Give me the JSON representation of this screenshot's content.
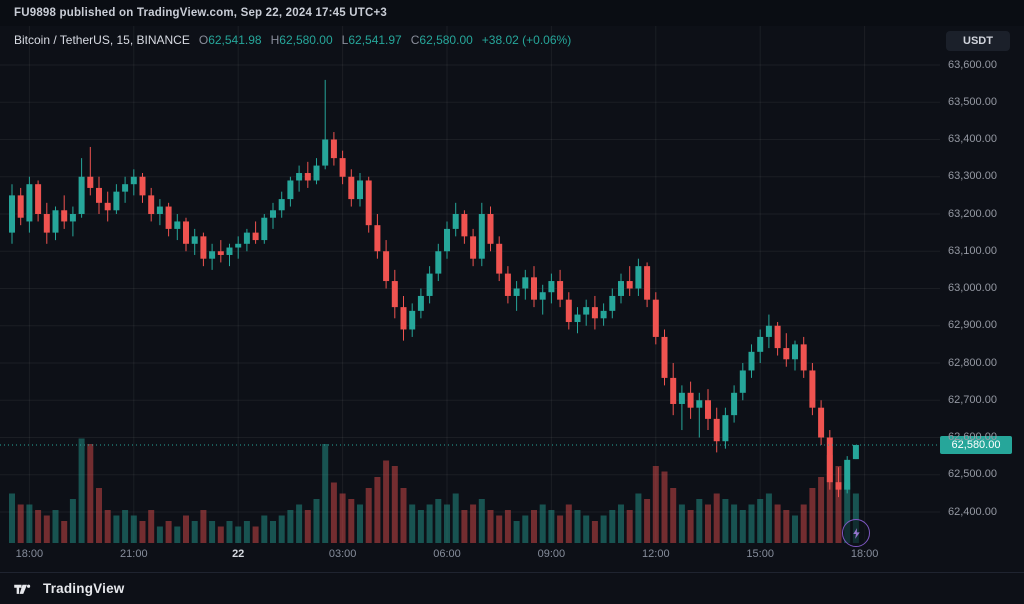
{
  "header": {
    "published_line": "FU9898 published on TradingView.com, Sep 22, 2024 17:45 UTC+3"
  },
  "symbol_bar": {
    "title": "Bitcoin / TetherUS, 15, BINANCE",
    "ohlc": [
      {
        "label": "O",
        "value": "62,541.98"
      },
      {
        "label": "H",
        "value": "62,580.00"
      },
      {
        "label": "L",
        "value": "62,541.97"
      },
      {
        "label": "C",
        "value": "62,580.00"
      }
    ],
    "change": "+38.02 (+0.06%)"
  },
  "currency_button": {
    "label": "USDT"
  },
  "price_scale": {
    "last_price_label": "62,580.00"
  },
  "footer": {
    "brand": "TradingView"
  },
  "colors": {
    "up": "#26a69a",
    "down": "#ef5350",
    "volume_up": "rgba(38,166,154,0.45)",
    "volume_down": "rgba(239,83,80,0.45)",
    "grid": "rgba(255,255,255,0.06)",
    "axis_text": "#868d9b",
    "axis_text_emphasis": "#d6d9df",
    "accent_purple": "#7e57c2",
    "last_price_tag_bg": "#26a69a"
  },
  "chart_data": {
    "type": "candlestick",
    "title": "Bitcoin / TetherUS",
    "exchange": "BINANCE",
    "interval_minutes": 15,
    "y_range": [
      62400,
      63600
    ],
    "last_price": 62580,
    "price_ticks": [
      "63,600.00",
      "63,500.00",
      "63,400.00",
      "63,300.00",
      "63,200.00",
      "63,100.00",
      "63,000.00",
      "62,900.00",
      "62,800.00",
      "62,700.00",
      "62,600.00",
      "62,500.00",
      "62,400.00"
    ],
    "time_ticks": [
      {
        "label": "18:00",
        "index": 2,
        "emphasis": false
      },
      {
        "label": "21:00",
        "index": 14,
        "emphasis": false
      },
      {
        "label": "22",
        "index": 26,
        "emphasis": true
      },
      {
        "label": "03:00",
        "index": 38,
        "emphasis": false
      },
      {
        "label": "06:00",
        "index": 50,
        "emphasis": false
      },
      {
        "label": "09:00",
        "index": 62,
        "emphasis": false
      },
      {
        "label": "12:00",
        "index": 74,
        "emphasis": false
      },
      {
        "label": "15:00",
        "index": 86,
        "emphasis": false
      },
      {
        "label": "18:00",
        "index": 98,
        "emphasis": false
      }
    ],
    "candles": [
      [
        63150,
        63280,
        63120,
        63250
      ],
      [
        63250,
        63270,
        63170,
        63190
      ],
      [
        63180,
        63300,
        63150,
        63280
      ],
      [
        63280,
        63290,
        63180,
        63200
      ],
      [
        63200,
        63230,
        63120,
        63150
      ],
      [
        63150,
        63220,
        63130,
        63210
      ],
      [
        63210,
        63250,
        63160,
        63180
      ],
      [
        63180,
        63220,
        63140,
        63200
      ],
      [
        63200,
        63350,
        63190,
        63300
      ],
      [
        63300,
        63380,
        63250,
        63270
      ],
      [
        63270,
        63300,
        63200,
        63230
      ],
      [
        63230,
        63260,
        63180,
        63210
      ],
      [
        63210,
        63280,
        63200,
        63260
      ],
      [
        63260,
        63300,
        63230,
        63280
      ],
      [
        63280,
        63320,
        63250,
        63300
      ],
      [
        63300,
        63310,
        63230,
        63250
      ],
      [
        63250,
        63270,
        63180,
        63200
      ],
      [
        63200,
        63240,
        63170,
        63220
      ],
      [
        63220,
        63230,
        63140,
        63160
      ],
      [
        63160,
        63200,
        63130,
        63180
      ],
      [
        63180,
        63190,
        63100,
        63120
      ],
      [
        63120,
        63160,
        63090,
        63140
      ],
      [
        63140,
        63150,
        63060,
        63080
      ],
      [
        63080,
        63120,
        63050,
        63100
      ],
      [
        63100,
        63130,
        63070,
        63090
      ],
      [
        63090,
        63120,
        63060,
        63110
      ],
      [
        63110,
        63140,
        63080,
        63120
      ],
      [
        63120,
        63160,
        63100,
        63150
      ],
      [
        63150,
        63180,
        63120,
        63130
      ],
      [
        63130,
        63200,
        63120,
        63190
      ],
      [
        63190,
        63230,
        63160,
        63210
      ],
      [
        63210,
        63260,
        63190,
        63240
      ],
      [
        63240,
        63300,
        63220,
        63290
      ],
      [
        63290,
        63330,
        63260,
        63310
      ],
      [
        63310,
        63340,
        63270,
        63290
      ],
      [
        63290,
        63350,
        63280,
        63330
      ],
      [
        63330,
        63560,
        63320,
        63400
      ],
      [
        63400,
        63420,
        63330,
        63350
      ],
      [
        63350,
        63370,
        63280,
        63300
      ],
      [
        63300,
        63320,
        63220,
        63240
      ],
      [
        63240,
        63310,
        63220,
        63290
      ],
      [
        63290,
        63300,
        63150,
        63170
      ],
      [
        63170,
        63200,
        63080,
        63100
      ],
      [
        63100,
        63130,
        63000,
        63020
      ],
      [
        63020,
        63050,
        62920,
        62950
      ],
      [
        62950,
        62980,
        62860,
        62890
      ],
      [
        62890,
        62960,
        62870,
        62940
      ],
      [
        62940,
        63000,
        62920,
        62980
      ],
      [
        62980,
        63060,
        62960,
        63040
      ],
      [
        63040,
        63120,
        63020,
        63100
      ],
      [
        63100,
        63180,
        63080,
        63160
      ],
      [
        63160,
        63230,
        63140,
        63200
      ],
      [
        63200,
        63210,
        63120,
        63140
      ],
      [
        63140,
        63160,
        63060,
        63080
      ],
      [
        63080,
        63230,
        63060,
        63200
      ],
      [
        63200,
        63220,
        63100,
        63120
      ],
      [
        63120,
        63140,
        63020,
        63040
      ],
      [
        63040,
        63060,
        62960,
        62980
      ],
      [
        62980,
        63020,
        62940,
        63000
      ],
      [
        63000,
        63050,
        62970,
        63030
      ],
      [
        63030,
        63060,
        62950,
        62970
      ],
      [
        62970,
        63010,
        62930,
        62990
      ],
      [
        62990,
        63040,
        62960,
        63020
      ],
      [
        63020,
        63050,
        62950,
        62970
      ],
      [
        62970,
        62990,
        62890,
        62910
      ],
      [
        62910,
        62950,
        62880,
        62930
      ],
      [
        62930,
        62970,
        62900,
        62950
      ],
      [
        62950,
        62980,
        62890,
        62920
      ],
      [
        62920,
        62960,
        62900,
        62940
      ],
      [
        62940,
        63000,
        62920,
        62980
      ],
      [
        62980,
        63040,
        62960,
        63020
      ],
      [
        63020,
        63060,
        62980,
        63000
      ],
      [
        63000,
        63080,
        62980,
        63060
      ],
      [
        63060,
        63070,
        62950,
        62970
      ],
      [
        62970,
        62990,
        62850,
        62870
      ],
      [
        62870,
        62890,
        62740,
        62760
      ],
      [
        62760,
        62800,
        62660,
        62690
      ],
      [
        62690,
        62740,
        62620,
        62720
      ],
      [
        62720,
        62750,
        62650,
        62680
      ],
      [
        62680,
        62720,
        62600,
        62700
      ],
      [
        62700,
        62730,
        62620,
        62650
      ],
      [
        62650,
        62680,
        62560,
        62590
      ],
      [
        62590,
        62680,
        62570,
        62660
      ],
      [
        62660,
        62740,
        62640,
        62720
      ],
      [
        62720,
        62800,
        62700,
        62780
      ],
      [
        62780,
        62850,
        62760,
        62830
      ],
      [
        62830,
        62890,
        62800,
        62870
      ],
      [
        62870,
        62930,
        62840,
        62900
      ],
      [
        62900,
        62910,
        62820,
        62840
      ],
      [
        62840,
        62880,
        62790,
        62810
      ],
      [
        62810,
        62860,
        62780,
        62850
      ],
      [
        62850,
        62870,
        62760,
        62780
      ],
      [
        62780,
        62800,
        62660,
        62680
      ],
      [
        62680,
        62700,
        62580,
        62600
      ],
      [
        62600,
        62620,
        62460,
        62480
      ],
      [
        62480,
        62520,
        62440,
        62460
      ],
      [
        62460,
        62550,
        62450,
        62540
      ],
      [
        62541.98,
        62580,
        62541.97,
        62580
      ]
    ],
    "volumes_relative": [
      0.45,
      0.35,
      0.35,
      0.3,
      0.25,
      0.3,
      0.2,
      0.4,
      0.95,
      0.9,
      0.5,
      0.3,
      0.25,
      0.3,
      0.25,
      0.2,
      0.3,
      0.15,
      0.2,
      0.15,
      0.25,
      0.2,
      0.3,
      0.2,
      0.15,
      0.2,
      0.15,
      0.2,
      0.15,
      0.25,
      0.2,
      0.25,
      0.3,
      0.35,
      0.3,
      0.4,
      0.9,
      0.55,
      0.45,
      0.4,
      0.35,
      0.5,
      0.6,
      0.75,
      0.7,
      0.5,
      0.35,
      0.3,
      0.35,
      0.4,
      0.35,
      0.45,
      0.3,
      0.35,
      0.4,
      0.3,
      0.25,
      0.3,
      0.2,
      0.25,
      0.3,
      0.35,
      0.3,
      0.25,
      0.35,
      0.3,
      0.25,
      0.2,
      0.25,
      0.3,
      0.35,
      0.3,
      0.45,
      0.4,
      0.7,
      0.65,
      0.5,
      0.35,
      0.3,
      0.4,
      0.35,
      0.45,
      0.4,
      0.35,
      0.3,
      0.35,
      0.4,
      0.45,
      0.35,
      0.3,
      0.25,
      0.35,
      0.5,
      0.6,
      0.8,
      0.7,
      0.55,
      0.45
    ]
  }
}
